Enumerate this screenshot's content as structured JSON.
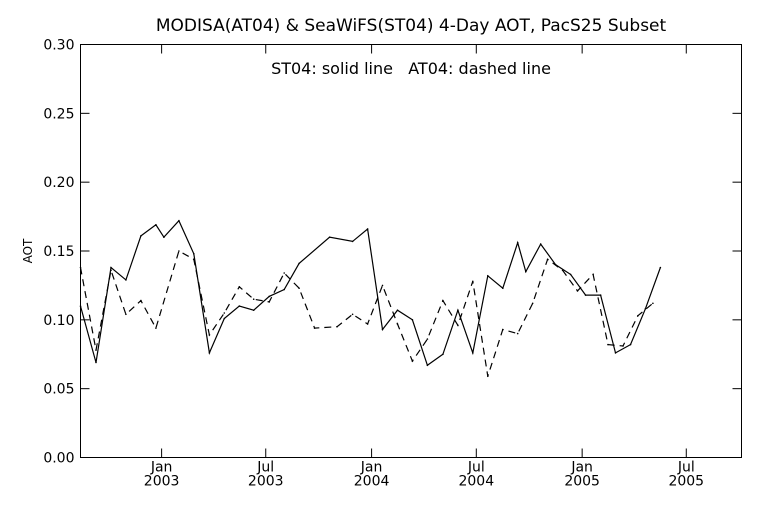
{
  "chart_data": {
    "type": "line",
    "title": "MODISA(AT04) & SeaWiFS(ST04) 4-Day AOT, PacS25 Subset",
    "annotation": "ST04: solid line   AT04: dashed line",
    "xlabel": "",
    "ylabel": "AOT",
    "x_range": [
      "2002-08-13",
      "2005-10-05"
    ],
    "ylim": [
      0.0,
      0.3
    ],
    "grid": false,
    "y_ticks": [
      {
        "value": 0.0,
        "label": "0.00"
      },
      {
        "value": 0.05,
        "label": "0.05"
      },
      {
        "value": 0.1,
        "label": "0.10"
      },
      {
        "value": 0.15,
        "label": "0.15"
      },
      {
        "value": 0.2,
        "label": "0.20"
      },
      {
        "value": 0.25,
        "label": "0.25"
      },
      {
        "value": 0.3,
        "label": "0.30"
      }
    ],
    "x_ticks": [
      {
        "date": "2003-01-01",
        "line1": "Jan",
        "line2": "2003"
      },
      {
        "date": "2003-07-01",
        "line1": "Jul",
        "line2": "2003"
      },
      {
        "date": "2004-01-01",
        "line1": "Jan",
        "line2": "2004"
      },
      {
        "date": "2004-07-01",
        "line1": "Jul",
        "line2": "2004"
      },
      {
        "date": "2005-01-01",
        "line1": "Jan",
        "line2": "2005"
      },
      {
        "date": "2005-07-01",
        "line1": "Jul",
        "line2": "2005"
      }
    ],
    "series": [
      {
        "name": "ST04",
        "style": "solid",
        "color": "#000000",
        "points": [
          {
            "x": "2002-08-13",
            "y": 0.11
          },
          {
            "x": "2002-09-09",
            "y": 0.069
          },
          {
            "x": "2002-10-05",
            "y": 0.138
          },
          {
            "x": "2002-10-31",
            "y": 0.129
          },
          {
            "x": "2002-11-26",
            "y": 0.161
          },
          {
            "x": "2002-12-22",
            "y": 0.169
          },
          {
            "x": "2003-01-05",
            "y": 0.16
          },
          {
            "x": "2003-01-31",
            "y": 0.172
          },
          {
            "x": "2003-02-26",
            "y": 0.148
          },
          {
            "x": "2003-03-25",
            "y": 0.076
          },
          {
            "x": "2003-04-20",
            "y": 0.101
          },
          {
            "x": "2003-05-16",
            "y": 0.11
          },
          {
            "x": "2003-06-10",
            "y": 0.107
          },
          {
            "x": "2003-07-07",
            "y": 0.117
          },
          {
            "x": "2003-08-02",
            "y": 0.122
          },
          {
            "x": "2003-08-28",
            "y": 0.141
          },
          {
            "x": "2003-10-20",
            "y": 0.16
          },
          {
            "x": "2003-11-29",
            "y": 0.157
          },
          {
            "x": "2003-12-25",
            "y": 0.166
          },
          {
            "x": "2004-01-20",
            "y": 0.093
          },
          {
            "x": "2004-02-15",
            "y": 0.107
          },
          {
            "x": "2004-03-12",
            "y": 0.1
          },
          {
            "x": "2004-04-07",
            "y": 0.067
          },
          {
            "x": "2004-05-04",
            "y": 0.075
          },
          {
            "x": "2004-05-30",
            "y": 0.107
          },
          {
            "x": "2004-06-25",
            "y": 0.076
          },
          {
            "x": "2004-07-21",
            "y": 0.132
          },
          {
            "x": "2004-08-16",
            "y": 0.123
          },
          {
            "x": "2004-09-11",
            "y": 0.156
          },
          {
            "x": "2004-09-25",
            "y": 0.135
          },
          {
            "x": "2004-10-21",
            "y": 0.155
          },
          {
            "x": "2004-11-16",
            "y": 0.14
          },
          {
            "x": "2004-12-12",
            "y": 0.133
          },
          {
            "x": "2005-01-07",
            "y": 0.118
          },
          {
            "x": "2005-02-02",
            "y": 0.118
          },
          {
            "x": "2005-02-28",
            "y": 0.076
          },
          {
            "x": "2005-03-26",
            "y": 0.082
          },
          {
            "x": "2005-04-21",
            "y": 0.108
          },
          {
            "x": "2005-05-17",
            "y": 0.138
          }
        ]
      },
      {
        "name": "AT04",
        "style": "dashed",
        "color": "#000000",
        "points": [
          {
            "x": "2002-08-13",
            "y": 0.138
          },
          {
            "x": "2002-09-09",
            "y": 0.078
          },
          {
            "x": "2002-10-05",
            "y": 0.136
          },
          {
            "x": "2002-10-31",
            "y": 0.104
          },
          {
            "x": "2002-11-26",
            "y": 0.114
          },
          {
            "x": "2002-12-22",
            "y": 0.094
          },
          {
            "x": "2003-01-31",
            "y": 0.15
          },
          {
            "x": "2003-02-26",
            "y": 0.144
          },
          {
            "x": "2003-03-25",
            "y": 0.089
          },
          {
            "x": "2003-04-20",
            "y": 0.105
          },
          {
            "x": "2003-05-16",
            "y": 0.124
          },
          {
            "x": "2003-06-10",
            "y": 0.115
          },
          {
            "x": "2003-07-07",
            "y": 0.113
          },
          {
            "x": "2003-08-02",
            "y": 0.134
          },
          {
            "x": "2003-08-28",
            "y": 0.123
          },
          {
            "x": "2003-09-24",
            "y": 0.094
          },
          {
            "x": "2003-11-02",
            "y": 0.095
          },
          {
            "x": "2003-11-29",
            "y": 0.104
          },
          {
            "x": "2003-12-25",
            "y": 0.097
          },
          {
            "x": "2004-01-20",
            "y": 0.125
          },
          {
            "x": "2004-02-15",
            "y": 0.097
          },
          {
            "x": "2004-03-12",
            "y": 0.07
          },
          {
            "x": "2004-04-07",
            "y": 0.086
          },
          {
            "x": "2004-05-04",
            "y": 0.114
          },
          {
            "x": "2004-05-30",
            "y": 0.096
          },
          {
            "x": "2004-06-25",
            "y": 0.128
          },
          {
            "x": "2004-07-21",
            "y": 0.059
          },
          {
            "x": "2004-08-16",
            "y": 0.093
          },
          {
            "x": "2004-09-11",
            "y": 0.09
          },
          {
            "x": "2004-10-07",
            "y": 0.112
          },
          {
            "x": "2004-11-02",
            "y": 0.144
          },
          {
            "x": "2004-11-28",
            "y": 0.136
          },
          {
            "x": "2004-12-24",
            "y": 0.121
          },
          {
            "x": "2005-01-20",
            "y": 0.133
          },
          {
            "x": "2005-02-15",
            "y": 0.082
          },
          {
            "x": "2005-03-13",
            "y": 0.081
          },
          {
            "x": "2005-04-08",
            "y": 0.103
          },
          {
            "x": "2005-05-04",
            "y": 0.112
          }
        ]
      }
    ]
  }
}
